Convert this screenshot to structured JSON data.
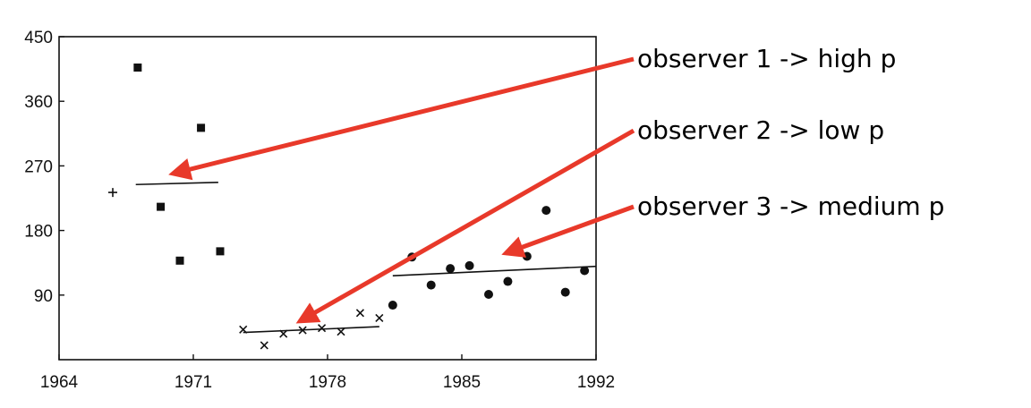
{
  "chart_data": {
    "type": "scatter",
    "title": "",
    "xlabel": "",
    "ylabel": "",
    "xlim": [
      1964,
      1992
    ],
    "ylim": [
      0,
      450
    ],
    "x_ticks": [
      1964,
      1971,
      1978,
      1985,
      1992
    ],
    "x_tick_labels": [
      "1964",
      "1971",
      "1978",
      "1985",
      "1992"
    ],
    "y_ticks": [
      90,
      180,
      270,
      360,
      450
    ],
    "y_tick_labels": [
      "90",
      "180",
      "270",
      "360",
      "450"
    ],
    "grid": false,
    "series": [
      {
        "marker": "plus",
        "points": [
          [
            1966.8,
            233
          ]
        ]
      },
      {
        "marker": "square",
        "points": [
          [
            1968.1,
            407
          ],
          [
            1969.3,
            213
          ],
          [
            1970.3,
            138
          ],
          [
            1971.4,
            323
          ],
          [
            1972.4,
            151
          ]
        ]
      },
      {
        "marker": "cross",
        "points": [
          [
            1973.6,
            42
          ],
          [
            1974.7,
            20
          ],
          [
            1975.7,
            36
          ],
          [
            1976.7,
            41
          ],
          [
            1977.7,
            44
          ],
          [
            1978.7,
            39
          ],
          [
            1979.7,
            65
          ],
          [
            1980.7,
            58
          ]
        ]
      },
      {
        "marker": "circle",
        "points": [
          [
            1981.4,
            76
          ],
          [
            1982.4,
            143
          ],
          [
            1983.4,
            104
          ],
          [
            1984.4,
            127
          ],
          [
            1985.4,
            131
          ],
          [
            1986.4,
            91
          ],
          [
            1987.4,
            109
          ],
          [
            1988.4,
            144
          ],
          [
            1989.4,
            208
          ],
          [
            1990.4,
            94
          ],
          [
            1991.4,
            124
          ]
        ]
      }
    ],
    "fit_lines": [
      {
        "x": [
          1968,
          1972.3
        ],
        "y": [
          244,
          247
        ]
      },
      {
        "x": [
          1973.6,
          1980.7
        ],
        "y": [
          38,
          46
        ]
      },
      {
        "x": [
          1981.4,
          1992
        ],
        "y": [
          117,
          130
        ]
      }
    ],
    "annotations": [
      {
        "text": "observer 1 -> high p",
        "color": "#e8392a"
      },
      {
        "text": "observer 2 -> low p",
        "color": "#e8392a"
      },
      {
        "text": "observer 3 -> medium p",
        "color": "#e8392a"
      }
    ]
  }
}
